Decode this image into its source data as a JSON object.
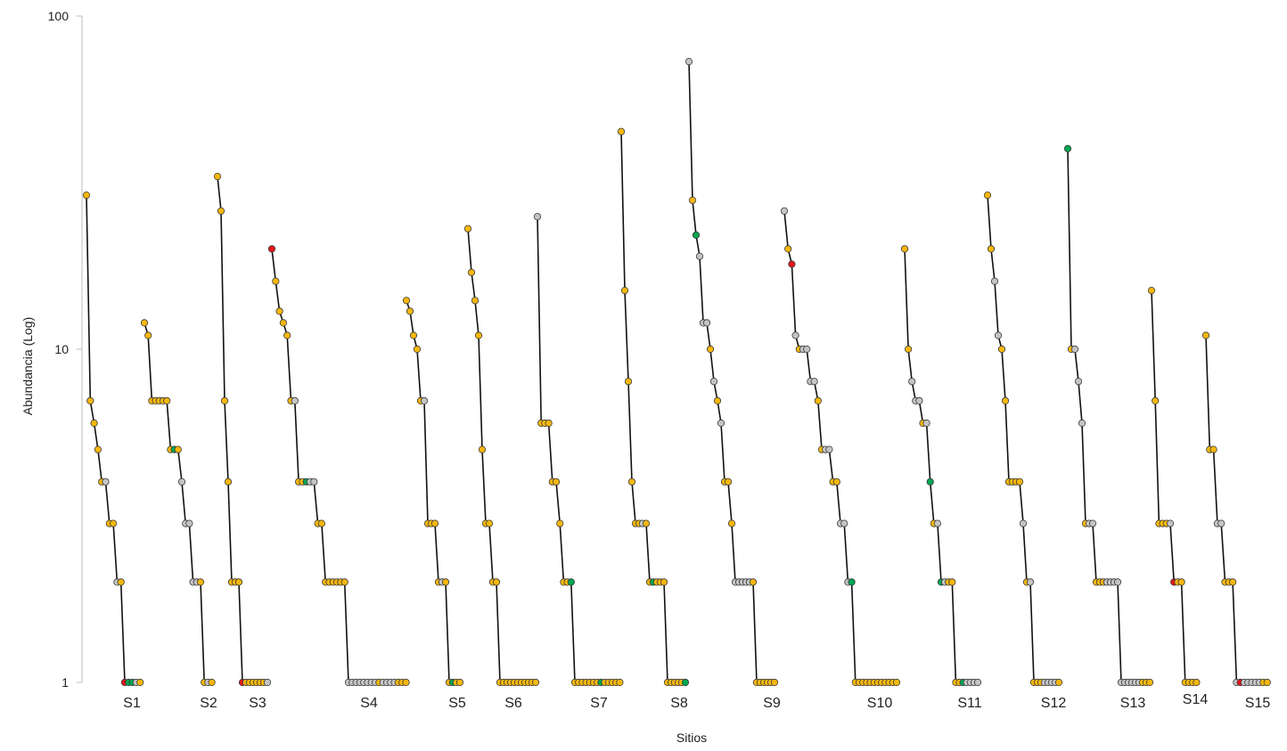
{
  "chart_data": {
    "type": "line",
    "title": "",
    "xlabel": "Sitios",
    "ylabel": "Abundancia (Log)",
    "yscale": "log",
    "ylim": [
      1,
      100
    ],
    "yticks": [
      {
        "value": 1,
        "label": "1"
      },
      {
        "value": 10,
        "label": "10"
      },
      {
        "value": 100,
        "label": "100"
      }
    ],
    "grid": false,
    "legend": "none",
    "colors": {
      "yellow": "#f5b70f",
      "gray": "#c4c4c4",
      "green": "#00a651",
      "red": "#e8161b",
      "line": "#111111",
      "axis": "#bdbdbd"
    },
    "series": [
      {
        "name": "S1",
        "values": [
          29,
          7,
          6,
          5,
          4,
          4,
          3,
          3,
          2,
          2,
          1,
          1,
          1,
          1,
          1
        ],
        "colors": [
          "yellow",
          "yellow",
          "yellow",
          "yellow",
          "yellow",
          "gray",
          "yellow",
          "yellow",
          "gray",
          "yellow",
          "red",
          "green",
          "green",
          "gray",
          "yellow"
        ]
      },
      {
        "name": "S2",
        "values": [
          12,
          11,
          7,
          7,
          7,
          7,
          7,
          5,
          5,
          5,
          4,
          3,
          3,
          2,
          2,
          2,
          1,
          1,
          1
        ],
        "colors": [
          "yellow",
          "yellow",
          "yellow",
          "yellow",
          "yellow",
          "yellow",
          "yellow",
          "yellow",
          "green",
          "yellow",
          "gray",
          "gray",
          "gray",
          "gray",
          "gray",
          "yellow",
          "yellow",
          "gray",
          "yellow"
        ]
      },
      {
        "name": "S3",
        "values": [
          33,
          26,
          7,
          4,
          2,
          2,
          2,
          1,
          1,
          1,
          1,
          1,
          1,
          1,
          1
        ],
        "colors": [
          "yellow",
          "yellow",
          "yellow",
          "yellow",
          "yellow",
          "yellow",
          "yellow",
          "red",
          "yellow",
          "yellow",
          "yellow",
          "yellow",
          "yellow",
          "yellow",
          "gray"
        ]
      },
      {
        "name": "S4",
        "values": [
          20,
          16,
          13,
          12,
          11,
          7,
          7,
          4,
          4,
          4,
          4,
          4,
          3,
          3,
          2,
          2,
          2,
          2,
          2,
          2,
          1,
          1,
          1,
          1,
          1,
          1,
          1,
          1,
          1,
          1,
          1,
          1,
          1,
          1,
          1,
          1
        ],
        "colors": [
          "red",
          "yellow",
          "yellow",
          "yellow",
          "yellow",
          "yellow",
          "gray",
          "yellow",
          "yellow",
          "green",
          "gray",
          "gray",
          "yellow",
          "yellow",
          "yellow",
          "yellow",
          "yellow",
          "yellow",
          "yellow",
          "yellow",
          "gray",
          "gray",
          "gray",
          "gray",
          "gray",
          "gray",
          "gray",
          "gray",
          "yellow",
          "gray",
          "gray",
          "gray",
          "gray",
          "yellow",
          "yellow",
          "yellow"
        ]
      },
      {
        "name": "S5",
        "values": [
          14,
          13,
          11,
          10,
          7,
          7,
          3,
          3,
          3,
          2,
          2,
          2,
          1,
          1,
          1,
          1
        ],
        "colors": [
          "yellow",
          "yellow",
          "yellow",
          "yellow",
          "yellow",
          "gray",
          "yellow",
          "yellow",
          "yellow",
          "yellow",
          "gray",
          "yellow",
          "yellow",
          "green",
          "yellow",
          "yellow"
        ]
      },
      {
        "name": "S6",
        "values": [
          23,
          17,
          14,
          11,
          5,
          3,
          3,
          2,
          2,
          1,
          1,
          1,
          1,
          1,
          1,
          1,
          1,
          1,
          1,
          1
        ],
        "colors": [
          "yellow",
          "yellow",
          "yellow",
          "yellow",
          "yellow",
          "yellow",
          "yellow",
          "yellow",
          "yellow",
          "yellow",
          "yellow",
          "yellow",
          "yellow",
          "yellow",
          "yellow",
          "yellow",
          "yellow",
          "yellow",
          "yellow",
          "yellow"
        ]
      },
      {
        "name": "S7",
        "values": [
          25,
          6,
          6,
          6,
          4,
          4,
          3,
          2,
          2,
          2,
          1,
          1,
          1,
          1,
          1,
          1,
          1,
          1,
          1,
          1,
          1,
          1,
          1
        ],
        "colors": [
          "gray",
          "yellow",
          "yellow",
          "yellow",
          "yellow",
          "yellow",
          "yellow",
          "yellow",
          "yellow",
          "green",
          "yellow",
          "yellow",
          "yellow",
          "yellow",
          "yellow",
          "yellow",
          "yellow",
          "green",
          "yellow",
          "yellow",
          "yellow",
          "yellow",
          "yellow"
        ]
      },
      {
        "name": "S8",
        "values": [
          45,
          15,
          8,
          4,
          3,
          3,
          3,
          3,
          2,
          2,
          2,
          2,
          2,
          1,
          1,
          1,
          1,
          1,
          1
        ],
        "colors": [
          "yellow",
          "yellow",
          "yellow",
          "yellow",
          "yellow",
          "yellow",
          "gray",
          "yellow",
          "yellow",
          "green",
          "yellow",
          "yellow",
          "yellow",
          "yellow",
          "yellow",
          "yellow",
          "yellow",
          "yellow",
          "green"
        ]
      },
      {
        "name": "S9",
        "values": [
          73,
          28,
          22,
          19,
          12,
          12,
          10,
          8,
          7,
          6,
          4,
          4,
          3,
          2,
          2,
          2,
          2,
          2,
          2,
          1,
          1,
          1,
          1,
          1,
          1
        ],
        "colors": [
          "gray",
          "yellow",
          "green",
          "gray",
          "gray",
          "gray",
          "yellow",
          "gray",
          "yellow",
          "gray",
          "yellow",
          "yellow",
          "yellow",
          "gray",
          "gray",
          "gray",
          "gray",
          "gray",
          "yellow",
          "yellow",
          "yellow",
          "yellow",
          "yellow",
          "yellow",
          "yellow"
        ]
      },
      {
        "name": "S10",
        "values": [
          26,
          20,
          18,
          11,
          10,
          10,
          10,
          8,
          8,
          7,
          5,
          5,
          5,
          4,
          4,
          3,
          3,
          2,
          2,
          1,
          1,
          1,
          1,
          1,
          1,
          1,
          1,
          1,
          1,
          1,
          1
        ],
        "colors": [
          "gray",
          "yellow",
          "red",
          "gray",
          "yellow",
          "gray",
          "gray",
          "gray",
          "gray",
          "yellow",
          "yellow",
          "gray",
          "gray",
          "yellow",
          "yellow",
          "gray",
          "gray",
          "gray",
          "green",
          "yellow",
          "yellow",
          "yellow",
          "yellow",
          "yellow",
          "yellow",
          "yellow",
          "yellow",
          "yellow",
          "yellow",
          "yellow",
          "yellow"
        ]
      },
      {
        "name": "S11",
        "values": [
          20,
          10,
          8,
          7,
          7,
          6,
          6,
          4,
          3,
          3,
          2,
          2,
          2,
          2,
          1,
          1,
          1,
          1,
          1,
          1,
          1
        ],
        "colors": [
          "yellow",
          "yellow",
          "gray",
          "gray",
          "gray",
          "yellow",
          "gray",
          "green",
          "yellow",
          "gray",
          "green",
          "gray",
          "yellow",
          "yellow",
          "yellow",
          "yellow",
          "green",
          "gray",
          "gray",
          "gray",
          "gray"
        ]
      },
      {
        "name": "S12",
        "values": [
          29,
          20,
          16,
          11,
          10,
          7,
          4,
          4,
          4,
          4,
          3,
          2,
          2,
          1,
          1,
          1,
          1,
          1,
          1,
          1,
          1
        ],
        "colors": [
          "yellow",
          "yellow",
          "gray",
          "gray",
          "yellow",
          "yellow",
          "yellow",
          "yellow",
          "yellow",
          "yellow",
          "gray",
          "yellow",
          "gray",
          "yellow",
          "yellow",
          "yellow",
          "gray",
          "gray",
          "gray",
          "gray",
          "yellow"
        ]
      },
      {
        "name": "S13",
        "values": [
          40,
          10,
          10,
          8,
          6,
          3,
          3,
          3,
          2,
          2,
          2,
          2,
          2,
          2,
          2,
          1,
          1,
          1,
          1,
          1,
          1,
          1,
          1,
          1
        ],
        "colors": [
          "green",
          "yellow",
          "gray",
          "gray",
          "gray",
          "yellow",
          "gray",
          "gray",
          "yellow",
          "yellow",
          "yellow",
          "gray",
          "gray",
          "gray",
          "gray",
          "gray",
          "gray",
          "gray",
          "gray",
          "gray",
          "gray",
          "yellow",
          "yellow",
          "yellow"
        ]
      },
      {
        "name": "S14",
        "values": [
          15,
          7,
          3,
          3,
          3,
          3,
          2,
          2,
          2,
          1,
          1,
          1,
          1
        ],
        "colors": [
          "yellow",
          "yellow",
          "yellow",
          "yellow",
          "yellow",
          "gray",
          "red",
          "yellow",
          "yellow",
          "yellow",
          "yellow",
          "yellow",
          "yellow"
        ]
      },
      {
        "name": "S15",
        "values": [
          11,
          5,
          5,
          3,
          3,
          2,
          2,
          2,
          1,
          1,
          1,
          1,
          1,
          1,
          1,
          1,
          1
        ],
        "colors": [
          "yellow",
          "yellow",
          "yellow",
          "gray",
          "gray",
          "yellow",
          "yellow",
          "yellow",
          "gray",
          "red",
          "gray",
          "gray",
          "gray",
          "gray",
          "gray",
          "yellow",
          "yellow"
        ]
      }
    ]
  }
}
